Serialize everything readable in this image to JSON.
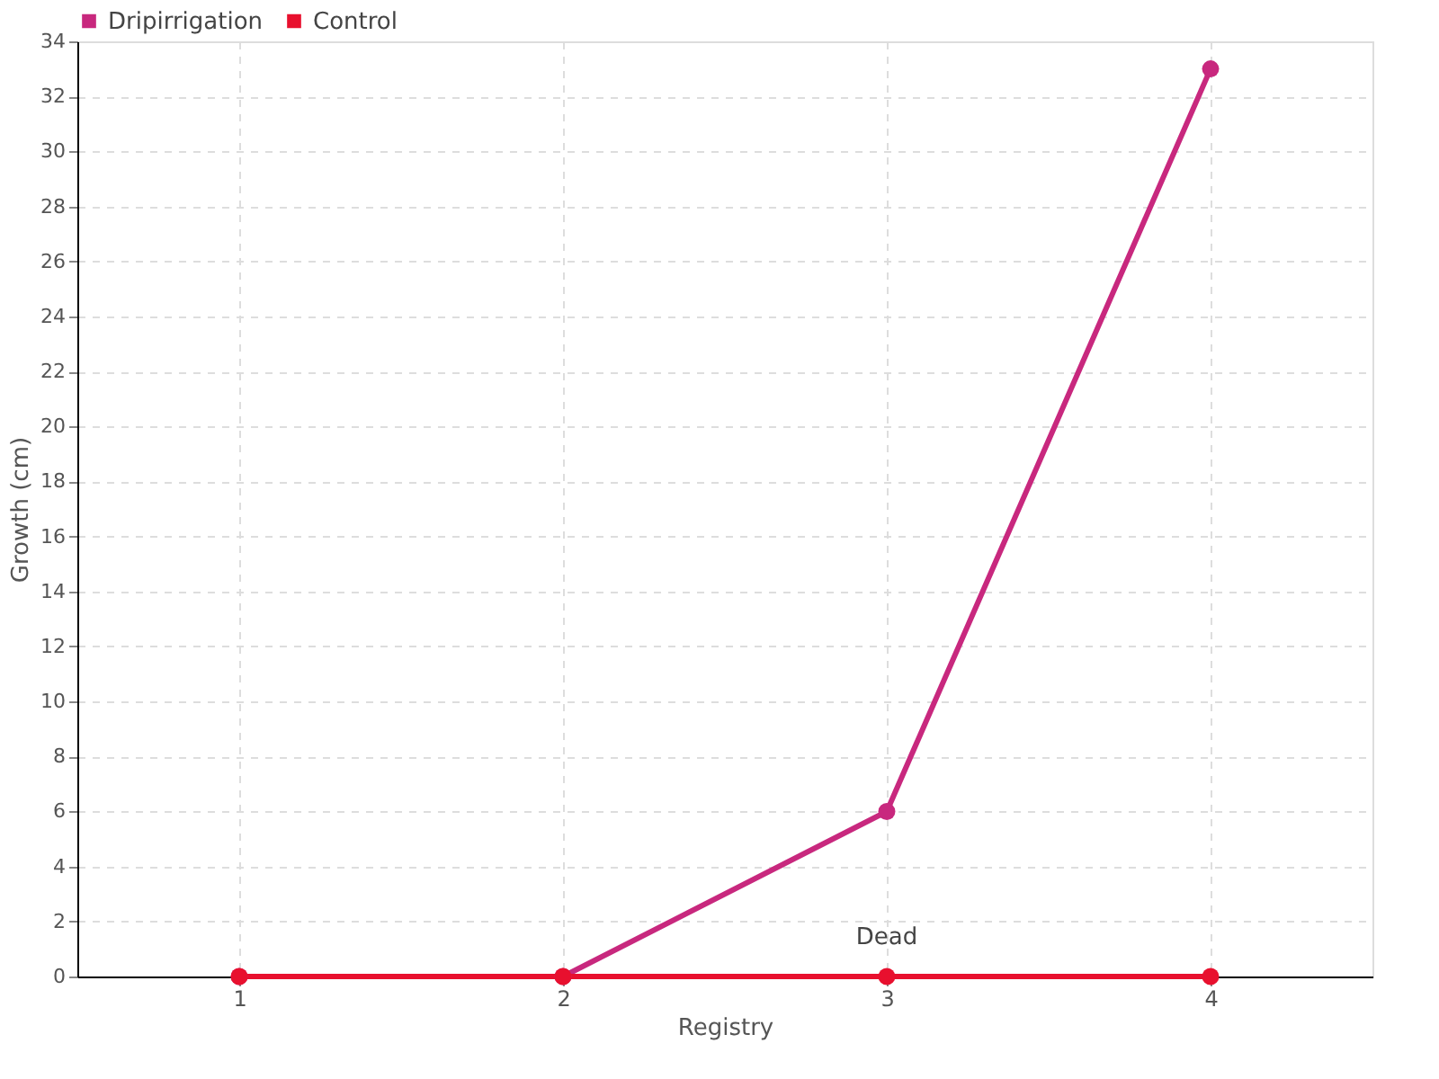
{
  "chart_data": {
    "type": "line",
    "xlabel": "Registry",
    "ylabel": "Growth (cm)",
    "x": [
      1,
      2,
      3,
      4
    ],
    "xlim": [
      0.5,
      4.5
    ],
    "xticks": [
      1,
      2,
      3,
      4
    ],
    "ylim": [
      0,
      34
    ],
    "yticks": [
      0,
      2,
      4,
      6,
      8,
      10,
      12,
      14,
      16,
      18,
      20,
      22,
      24,
      26,
      28,
      30,
      32,
      34
    ],
    "series": [
      {
        "name": "Dripirrigation",
        "color": "#c8287e",
        "values": [
          0,
          0,
          6,
          33
        ]
      },
      {
        "name": "Control",
        "color": "#e8102e",
        "values": [
          0,
          0,
          0,
          0
        ]
      }
    ],
    "annotations": [
      {
        "text": "Dead",
        "x": 3,
        "y": 0
      }
    ],
    "grid": true,
    "legend": "top left",
    "marker": "circle",
    "line_style": "solid"
  }
}
